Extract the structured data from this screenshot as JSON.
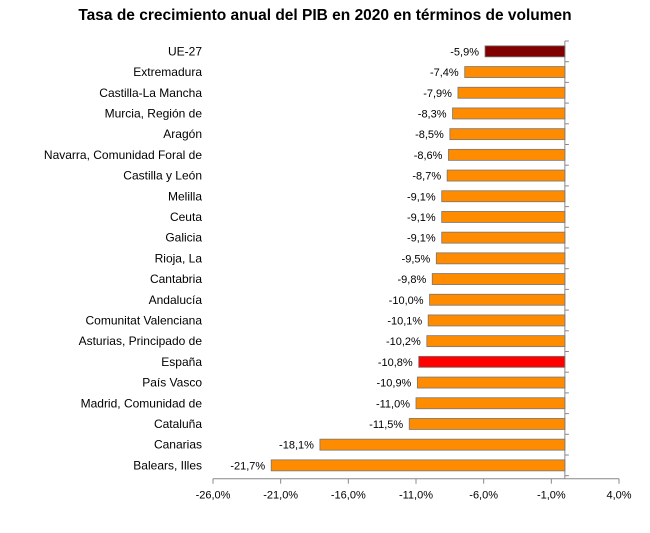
{
  "chart_data": {
    "type": "bar",
    "orientation": "horizontal",
    "title": "Tasa de crecimiento anual del PIB en 2020 en términos de volumen",
    "xlabel": "",
    "ylabel": "",
    "xlim": [
      -26.0,
      4.0
    ],
    "x_ticks": [
      -26.0,
      -21.0,
      -16.0,
      -11.0,
      -6.0,
      -1.0,
      4.0
    ],
    "x_tick_labels": [
      "-26,0%",
      "-21,0%",
      "-16,0%",
      "-11,0%",
      "-6,0%",
      "-1,0%",
      "4,0%"
    ],
    "grid": false,
    "legend": "none",
    "categories": [
      "UE-27",
      "Extremadura",
      "Castilla-La Mancha",
      "Murcia, Región de",
      "Aragón",
      "Navarra, Comunidad Foral de",
      "Castilla y León",
      "Melilla",
      "Ceuta",
      "Galicia",
      "Rioja, La",
      "Cantabria",
      "Andalucía",
      "Comunitat Valenciana",
      "Asturias, Principado de",
      "España",
      "País Vasco",
      "Madrid, Comunidad de",
      "Cataluña",
      "Canarias",
      "Balears, Illes"
    ],
    "values": [
      -5.9,
      -7.4,
      -7.9,
      -8.3,
      -8.5,
      -8.6,
      -8.7,
      -9.1,
      -9.1,
      -9.1,
      -9.5,
      -9.8,
      -10.0,
      -10.1,
      -10.2,
      -10.8,
      -10.9,
      -11.0,
      -11.5,
      -18.1,
      -21.7
    ],
    "value_labels": [
      "-5,9%",
      "-7,4%",
      "-7,9%",
      "-8,3%",
      "-8,5%",
      "-8,6%",
      "-8,7%",
      "-9,1%",
      "-9,1%",
      "-9,1%",
      "-9,5%",
      "-9,8%",
      "-10,0%",
      "-10,1%",
      "-10,2%",
      "-10,8%",
      "-10,9%",
      "-11,0%",
      "-11,5%",
      "-18,1%",
      "-21,7%"
    ],
    "colors": {
      "default": "#ff8c00",
      "UE-27": "#800000",
      "España": "#ff0000"
    }
  }
}
